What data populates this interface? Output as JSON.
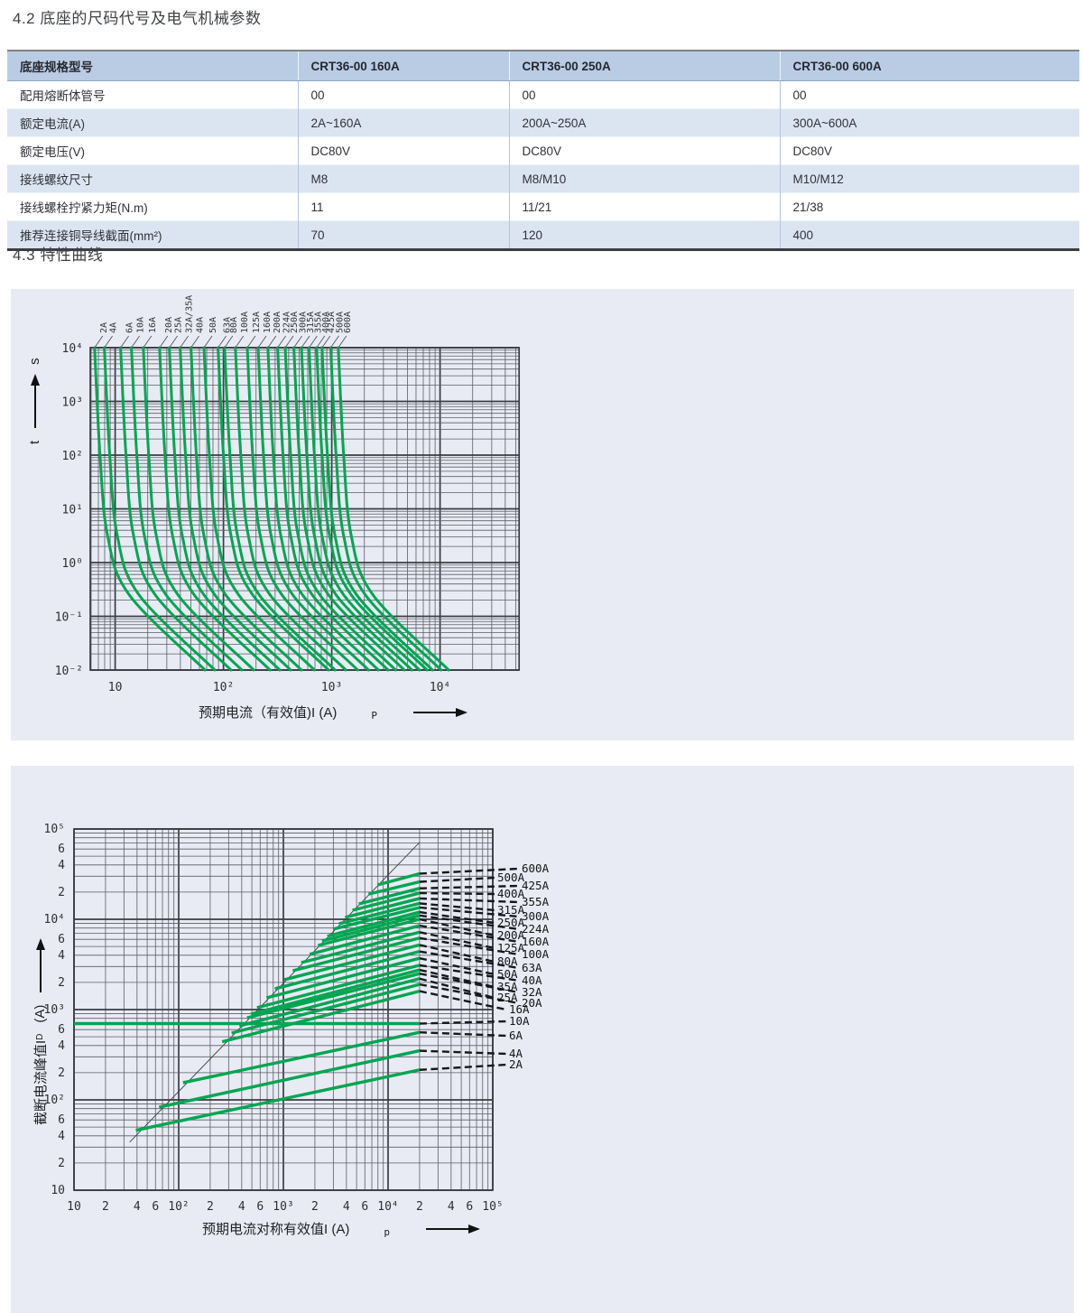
{
  "titles": {
    "section_42": "4.2 底座的尺码代号及电气机械参数",
    "section_43": "4.3 特性曲线"
  },
  "table": {
    "headers": [
      "底座规格型号",
      "CRT36-00 160A",
      "CRT36-00 250A",
      "CRT36-00 600A"
    ],
    "rows": [
      {
        "label": "配用熔断体管号",
        "values": [
          "00",
          "00",
          "00"
        ]
      },
      {
        "label": "额定电流(A)",
        "values": [
          "2A~160A",
          "200A~250A",
          "300A~600A"
        ]
      },
      {
        "label": "额定电压(V)",
        "values": [
          "DC80V",
          "DC80V",
          "DC80V"
        ]
      },
      {
        "label": "接线螺纹尺寸",
        "values": [
          "M8",
          "M8/M10",
          "M10/M12"
        ]
      },
      {
        "label": "接线螺栓拧紧力矩(N.m)",
        "values": [
          "11",
          "11/21",
          "21/38"
        ]
      },
      {
        "label": "推荐连接铜导线截面(mm²)",
        "values": [
          "70",
          "120",
          "400"
        ]
      }
    ]
  },
  "chart_data": [
    {
      "name": "time-current-characteristic",
      "type": "line",
      "scale": "log-log",
      "xlabel": "预期电流（有效值)I (A)",
      "xlabel_sub": "P",
      "ylabel_axis": "t",
      "ylabel_unit": "s",
      "xlim_log": [
        0.77,
        4.73
      ],
      "ylim_log": [
        -2,
        4
      ],
      "x_ticks": [
        {
          "t": "10",
          "log": 1
        },
        {
          "t": "10²",
          "log": 2
        },
        {
          "t": "10³",
          "log": 3
        },
        {
          "t": "10⁴",
          "log": 4
        }
      ],
      "y_ticks": [
        {
          "t": "10⁴",
          "log": 4
        },
        {
          "t": "10³",
          "log": 3
        },
        {
          "t": "10²",
          "log": 2
        },
        {
          "t": "10¹",
          "log": 1
        },
        {
          "t": "10⁰",
          "log": 0
        },
        {
          "t": "10⁻¹",
          "log": -1
        },
        {
          "t": "10⁻²",
          "log": -2
        }
      ],
      "curve_color": "#00a651",
      "logT_anchors": [
        4,
        2,
        0.5,
        -0.6,
        -2
      ],
      "curves": [
        {
          "label": "2A",
          "logI": [
            0.81,
            0.86,
            0.93,
            1.13,
            1.83
          ]
        },
        {
          "label": "4A",
          "logI": [
            0.9,
            0.95,
            1.02,
            1.22,
            1.92
          ]
        },
        {
          "label": "6A",
          "logI": [
            1.05,
            1.1,
            1.17,
            1.37,
            2.07
          ]
        },
        {
          "label": "10A",
          "logI": [
            1.15,
            1.2,
            1.27,
            1.47,
            2.17
          ]
        },
        {
          "label": "16A",
          "logI": [
            1.26,
            1.31,
            1.38,
            1.58,
            2.28
          ]
        },
        {
          "label": "20A",
          "logI": [
            1.41,
            1.46,
            1.53,
            1.73,
            2.43
          ]
        },
        {
          "label": "25A",
          "logI": [
            1.5,
            1.55,
            1.62,
            1.82,
            2.52
          ]
        },
        {
          "label": "32A/35A",
          "logI": [
            1.6,
            1.65,
            1.72,
            1.92,
            2.62
          ]
        },
        {
          "label": "40A",
          "logI": [
            1.7,
            1.75,
            1.82,
            2.02,
            2.72
          ]
        },
        {
          "label": "50A",
          "logI": [
            1.82,
            1.87,
            1.94,
            2.14,
            2.84
          ]
        },
        {
          "label": "63A",
          "logI": [
            1.95,
            2.0,
            2.07,
            2.27,
            2.97
          ]
        },
        {
          "label": "80A",
          "logI": [
            2.01,
            2.06,
            2.13,
            2.33,
            3.03
          ]
        },
        {
          "label": "100A",
          "logI": [
            2.11,
            2.16,
            2.23,
            2.43,
            3.13
          ]
        },
        {
          "label": "125A",
          "logI": [
            2.22,
            2.27,
            2.34,
            2.54,
            3.24
          ]
        },
        {
          "label": "160A",
          "logI": [
            2.32,
            2.37,
            2.44,
            2.64,
            3.34
          ]
        },
        {
          "label": "200A",
          "logI": [
            2.41,
            2.46,
            2.53,
            2.73,
            3.43
          ]
        },
        {
          "label": "224A",
          "logI": [
            2.5,
            2.55,
            2.62,
            2.82,
            3.52
          ]
        },
        {
          "label": "250A",
          "logI": [
            2.57,
            2.62,
            2.69,
            2.89,
            3.59
          ]
        },
        {
          "label": "300A",
          "logI": [
            2.65,
            2.7,
            2.77,
            2.97,
            3.67
          ]
        },
        {
          "label": "315A",
          "logI": [
            2.72,
            2.77,
            2.84,
            3.04,
            3.74
          ]
        },
        {
          "label": "355A",
          "logI": [
            2.79,
            2.84,
            2.91,
            3.11,
            3.81
          ]
        },
        {
          "label": "400A",
          "logI": [
            2.86,
            2.91,
            2.98,
            3.18,
            3.88
          ]
        },
        {
          "label": "425A",
          "logI": [
            2.91,
            2.96,
            3.03,
            3.23,
            3.93
          ]
        },
        {
          "label": "500A",
          "logI": [
            2.99,
            3.04,
            3.11,
            3.31,
            4.01
          ]
        },
        {
          "label": "600A",
          "logI": [
            3.06,
            3.11,
            3.18,
            3.38,
            4.08
          ]
        }
      ]
    },
    {
      "name": "cut-off-current-characteristic",
      "type": "line",
      "scale": "log-log",
      "xlabel": "预期电流对称有效值I (A)",
      "xlabel_sub": "p",
      "ylabel": "截断电流峰值I",
      "ylabel_sub": "D",
      "ylabel_unit": "(A)",
      "xlim": [
        10,
        100000
      ],
      "ylim": [
        10,
        100000
      ],
      "x_ticks": [
        {
          "t": "10",
          "v": 10
        },
        {
          "t": "2",
          "v": 20
        },
        {
          "t": "4",
          "v": 40
        },
        {
          "t": "6",
          "v": 60
        },
        {
          "t": "10²",
          "v": 100
        },
        {
          "t": "2",
          "v": 200
        },
        {
          "t": "4",
          "v": 400
        },
        {
          "t": "6",
          "v": 600
        },
        {
          "t": "10³",
          "v": 1000
        },
        {
          "t": "2",
          "v": 2000
        },
        {
          "t": "4",
          "v": 4000
        },
        {
          "t": "6",
          "v": 6000
        },
        {
          "t": "10⁴",
          "v": 10000
        },
        {
          "t": "2",
          "v": 20000
        },
        {
          "t": "4",
          "v": 40000
        },
        {
          "t": "6",
          "v": 60000
        },
        {
          "t": "10⁵",
          "v": 100000
        }
      ],
      "y_ticks": [
        {
          "t": "10⁵",
          "v": 100000
        },
        {
          "t": "6",
          "v": 60000
        },
        {
          "t": "4",
          "v": 40000
        },
        {
          "t": "2",
          "v": 20000
        },
        {
          "t": "10⁴",
          "v": 10000
        },
        {
          "t": "6",
          "v": 6000
        },
        {
          "t": "4",
          "v": 4000
        },
        {
          "t": "2",
          "v": 2000
        },
        {
          "t": "10³",
          "v": 1000
        },
        {
          "t": "6",
          "v": 600
        },
        {
          "t": "4",
          "v": 400
        },
        {
          "t": "2",
          "v": 200
        },
        {
          "t": "10²",
          "v": 100
        },
        {
          "t": "6",
          "v": 60
        },
        {
          "t": "4",
          "v": 40
        },
        {
          "t": "2",
          "v": 20
        },
        {
          "t": "10",
          "v": 10
        }
      ],
      "curve_color": "#00a651",
      "diagonal_line": [
        34,
        34,
        20000,
        71000
      ],
      "curves": [
        {
          "label": "600A",
          "line": [
            7900,
            24000,
            20000,
            32000
          ],
          "label_col": 1,
          "label_y": 114
        },
        {
          "label": "500A",
          "line": [
            6500,
            19000,
            20000,
            26000
          ],
          "label_col": 0,
          "label_y": 124
        },
        {
          "label": "425A",
          "line": [
            5250,
            14800,
            20000,
            22000
          ],
          "label_col": 1,
          "label_y": 133
        },
        {
          "label": "400A",
          "line": [
            4570,
            12600,
            20000,
            19500
          ],
          "label_col": 0,
          "label_y": 142
        },
        {
          "label": "355A",
          "line": [
            3890,
            10500,
            20000,
            17000
          ],
          "label_col": 1,
          "label_y": 151
        },
        {
          "label": "315A",
          "line": [
            3390,
            8900,
            20000,
            15000
          ],
          "label_col": 0,
          "label_y": 160
        },
        {
          "label": "300A",
          "line": [
            3020,
            7800,
            20000,
            13500
          ],
          "label_col": 1,
          "label_y": 167
        },
        {
          "label": "250A",
          "line": [
            2630,
            6500,
            20000,
            12000
          ],
          "label_col": 0,
          "label_y": 174
        },
        {
          "label": "224A",
          "line": [
            2340,
            5750,
            20000,
            11000
          ],
          "label_col": 1,
          "label_y": 181
        },
        {
          "label": "200A",
          "line": [
            2140,
            5130,
            20000,
            10000
          ],
          "label_col": 0,
          "label_y": 188
        },
        {
          "label": "160A",
          "line": [
            1780,
            4100,
            20000,
            8500
          ],
          "label_col": 1,
          "label_y": 195
        },
        {
          "label": "125A",
          "line": [
            1480,
            3310,
            20000,
            7200
          ],
          "label_col": 0,
          "label_y": 202
        },
        {
          "label": "100A",
          "line": [
            1230,
            2690,
            20000,
            6200
          ],
          "label_col": 1,
          "label_y": 209
        },
        {
          "label": "80A",
          "line": [
            1020,
            2140,
            20000,
            5200
          ],
          "label_col": 0,
          "label_y": 217
        },
        {
          "label": "63A",
          "line": [
            830,
            1700,
            20000,
            4400
          ],
          "label_col": 1,
          "label_y": 224
        },
        {
          "label": "50A",
          "line": [
            690,
            1350,
            20000,
            3700
          ],
          "label_col": 0,
          "label_y": 231
        },
        {
          "label": "40A",
          "line": [
            560,
            1050,
            20000,
            3100
          ],
          "label_col": 1,
          "label_y": 238
        },
        {
          "label": "35A",
          "line": [
            490,
            890,
            20000,
            2750
          ],
          "label_col": 0,
          "label_y": 245
        },
        {
          "label": "32A",
          "line": [
            450,
            810,
            20000,
            2500
          ],
          "label_col": 1,
          "label_y": 251
        },
        {
          "label": "25A",
          "line": [
            380,
            660,
            20000,
            2200
          ],
          "label_col": 0,
          "label_y": 257
        },
        {
          "label": "20A",
          "line": [
            320,
            550,
            20000,
            1900
          ],
          "label_col": 1,
          "label_y": 263
        },
        {
          "label": "16A",
          "line": [
            260,
            440,
            20000,
            1600
          ],
          "label_col": 2,
          "label_y": 270
        },
        {
          "label": "10A",
          "line": [
            10,
            700,
            20000,
            700
          ],
          "label_col": 2,
          "label_y": 283
        },
        {
          "label": "6A",
          "line": [
            110,
            155,
            20000,
            560
          ],
          "label_col": 2,
          "label_y": 299
        },
        {
          "label": "4A",
          "line": [
            65,
            83,
            20000,
            350
          ],
          "label_col": 2,
          "label_y": 319
        },
        {
          "label": "2A",
          "line": [
            39,
            46,
            20000,
            215
          ],
          "label_col": 2,
          "label_y": 331
        }
      ]
    }
  ]
}
